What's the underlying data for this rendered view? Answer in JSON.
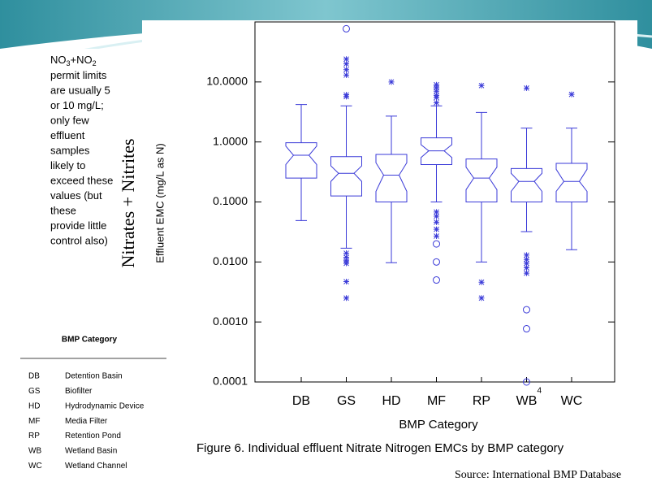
{
  "note": {
    "formula": [
      "NO",
      "3",
      "+NO",
      "2"
    ],
    "lines": [
      "permit limits",
      "are usually 5",
      "or 10 mg/L;",
      "only few",
      "effluent",
      "samples",
      "likely to",
      "exceed these",
      "values (but",
      "these",
      "provide little",
      "control also)"
    ]
  },
  "legend_table": {
    "title": "BMP Category",
    "rows": [
      [
        "DB",
        "Detention Basin"
      ],
      [
        "GS",
        "Biofilter"
      ],
      [
        "HD",
        "Hydrodynamic Device"
      ],
      [
        "MF",
        "Media Filter"
      ],
      [
        "RP",
        "Retention Pond"
      ],
      [
        "WB",
        "Wetland Basin"
      ],
      [
        "WC",
        "Wetland Channel"
      ]
    ]
  },
  "chart_data": {
    "type": "box",
    "side_label": "Nitrates + Nitrites",
    "y_label": "Effluent  EMC  (mg/L as N)",
    "x_label": "BMP Category",
    "log_y": true,
    "color": "#3a3ad8",
    "categories": [
      "DB",
      "GS",
      "HD",
      "MF",
      "RP",
      "WB",
      "WC"
    ],
    "ylim": [
      0.0001,
      100
    ],
    "yticks": [
      {
        "value": 0.0001,
        "label": "0.0001"
      },
      {
        "value": 0.001,
        "label": "0.0010"
      },
      {
        "value": 0.01,
        "label": "0.0100"
      },
      {
        "value": 0.1,
        "label": "0.1000"
      },
      {
        "value": 1,
        "label": "1.0000"
      },
      {
        "value": 10,
        "label": "10.0000"
      }
    ],
    "boxes": [
      {
        "whisker_low": 0.049,
        "q1": 0.25,
        "notch_low": 0.42,
        "median": 0.6,
        "notch_high": 0.85,
        "q3": 0.97,
        "whisker_high": 4.2,
        "stars": [],
        "circles": []
      },
      {
        "whisker_low": 0.017,
        "q1": 0.126,
        "notch_low": 0.22,
        "median": 0.3,
        "notch_high": 0.4,
        "q3": 0.57,
        "whisker_high": 4.0,
        "stars": [
          24,
          20,
          16,
          13,
          6.1,
          5.7,
          0.014,
          0.012,
          0.0105,
          0.0095,
          0.0047,
          0.0025
        ],
        "circles": [
          77
        ]
      },
      {
        "whisker_low": 0.0097,
        "q1": 0.1,
        "notch_low": 0.15,
        "median": 0.28,
        "notch_high": 0.45,
        "q3": 0.62,
        "whisker_high": 2.7,
        "stars": [
          10
        ],
        "circles": []
      },
      {
        "whisker_low": 0.1,
        "q1": 0.42,
        "notch_low": 0.55,
        "median": 0.71,
        "notch_high": 0.9,
        "q3": 1.17,
        "whisker_high": 4.0,
        "stars": [
          9,
          8,
          7,
          6,
          5.5,
          4.5,
          0.068,
          0.058,
          0.046,
          0.035,
          0.027
        ],
        "circles": [
          0.02,
          0.01,
          0.005
        ]
      },
      {
        "whisker_low": 0.01,
        "q1": 0.1,
        "notch_low": 0.16,
        "median": 0.25,
        "notch_high": 0.38,
        "q3": 0.52,
        "whisker_high": 3.1,
        "stars": [
          8.7,
          0.0046,
          0.0025
        ],
        "circles": []
      },
      {
        "whisker_low": 0.032,
        "q1": 0.1,
        "notch_low": 0.15,
        "median": 0.22,
        "notch_high": 0.3,
        "q3": 0.36,
        "whisker_high": 1.7,
        "stars": [
          7.9,
          0.013,
          0.011,
          0.0095,
          0.008,
          0.0065
        ],
        "circles": [
          0.0016,
          0.00077,
          0.0001
        ]
      },
      {
        "whisker_low": 0.016,
        "q1": 0.1,
        "notch_low": 0.15,
        "median": 0.22,
        "notch_high": 0.35,
        "q3": 0.44,
        "whisker_high": 1.7,
        "stars": [
          6.2
        ],
        "circles": []
      }
    ],
    "annotations": [
      "4"
    ]
  },
  "caption": "Figure 6.  Individual effluent Nitrate Nitrogen EMCs by BMP category",
  "source": "Source: International BMP Database"
}
